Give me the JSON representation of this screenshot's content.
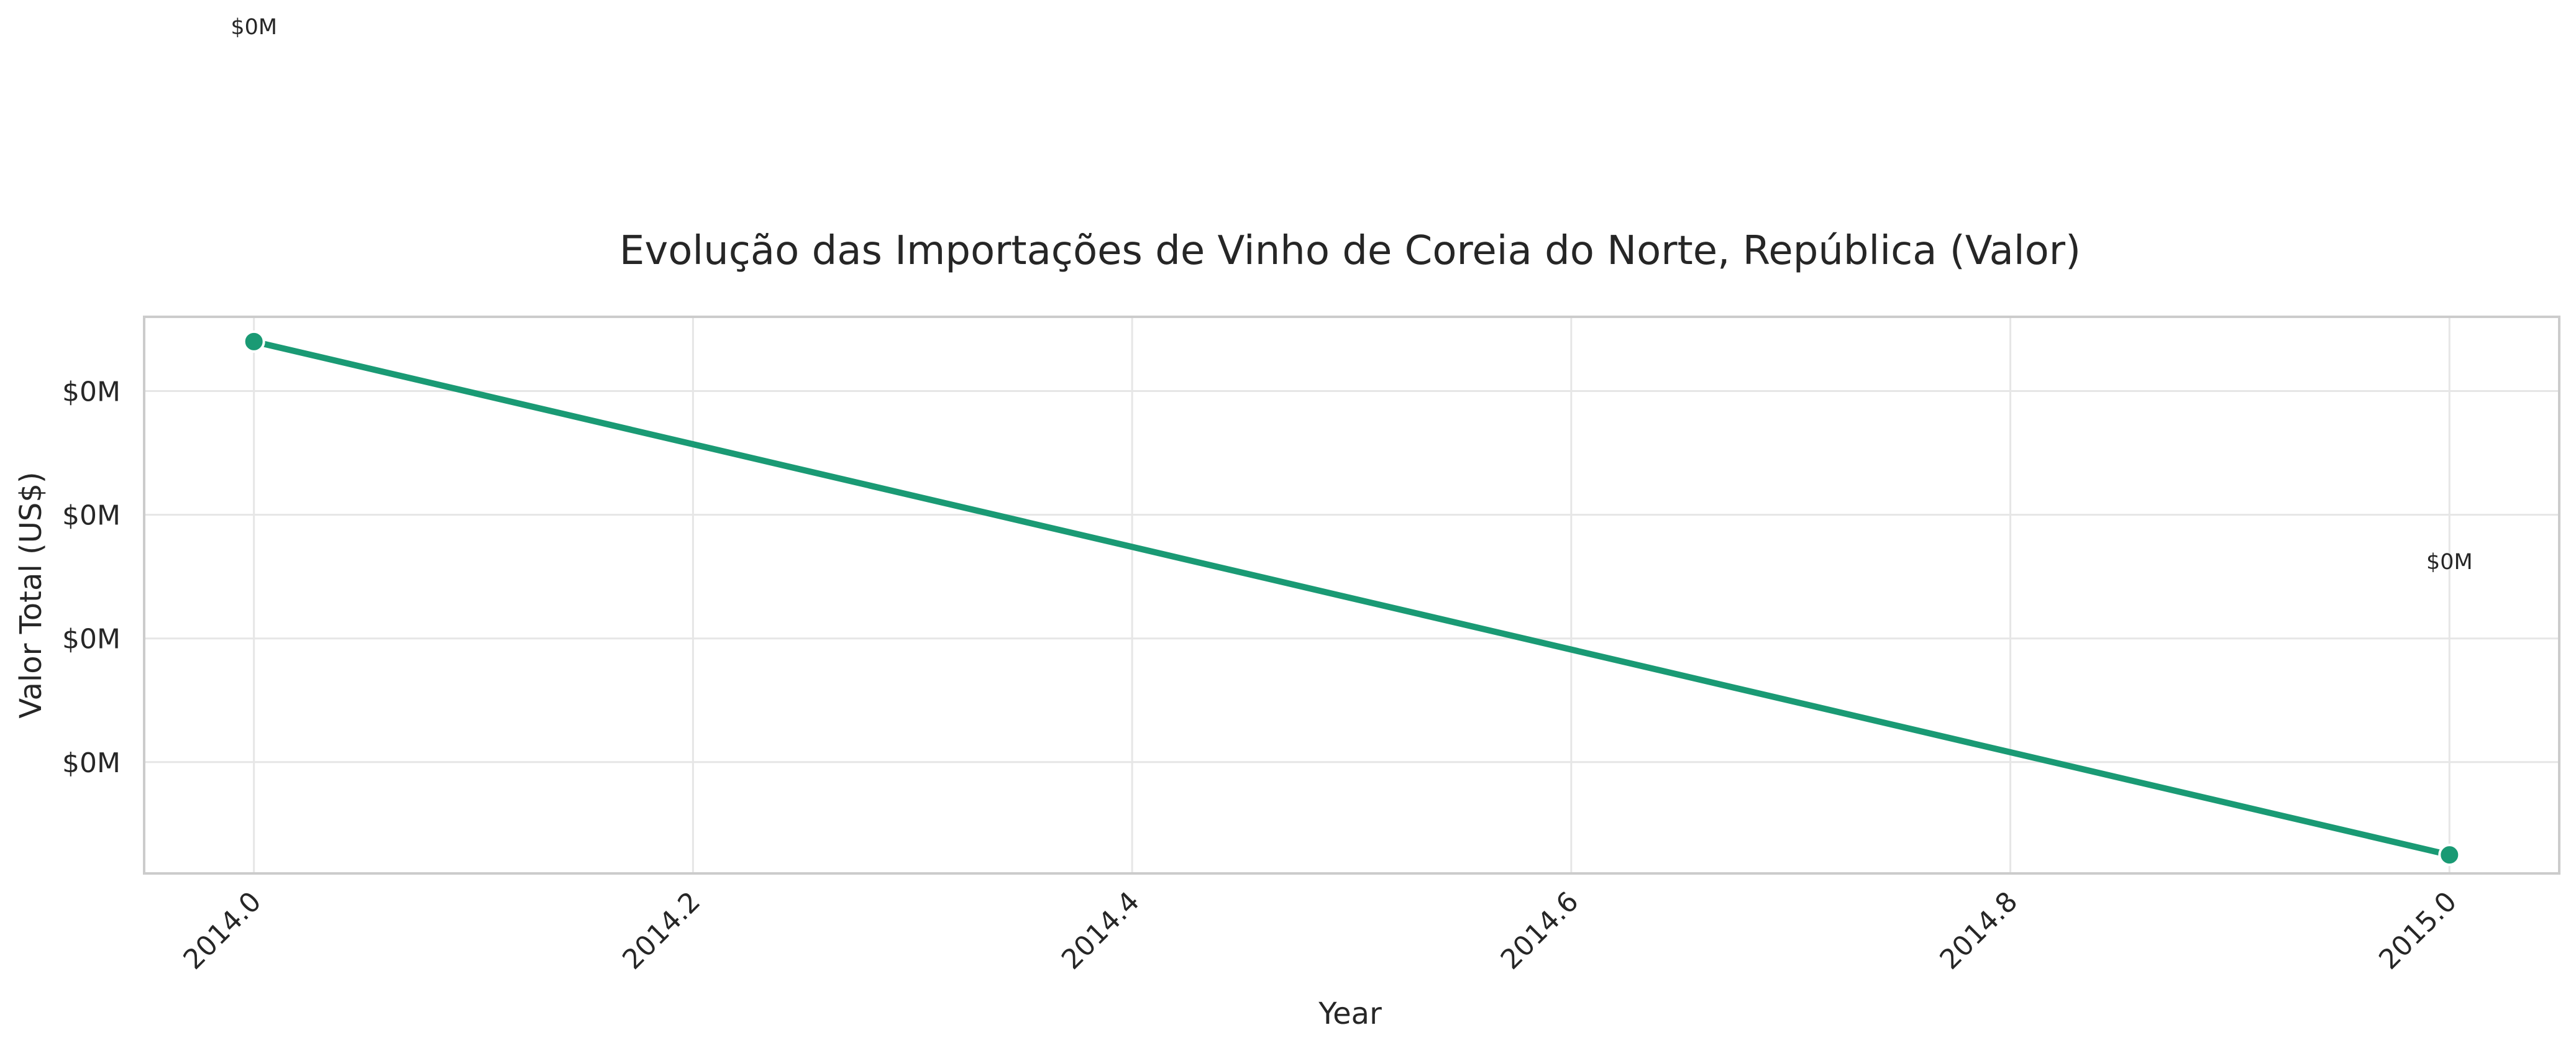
{
  "chart_data": {
    "type": "line",
    "title": "Evolução das Importações de Vinho de Coreia do Norte, República (Valor)",
    "xlabel": "Year",
    "ylabel": "Valor Total (US$)",
    "x": [
      2014.0,
      2015.0
    ],
    "series": [
      {
        "values": [
          4.2e-05,
          5e-07
        ],
        "color": "#1a9a74",
        "data_labels": [
          "$0M",
          "$0M"
        ]
      }
    ],
    "xlim": [
      2013.95,
      2015.05
    ],
    "ylim": [
      -1e-06,
      4.4e-05
    ],
    "x_ticks": [
      2014.0,
      2014.2,
      2014.4,
      2014.6,
      2014.8,
      2015.0
    ],
    "x_tick_labels": [
      "2014.0",
      "2014.2",
      "2014.4",
      "2014.6",
      "2014.8",
      "2015.0"
    ],
    "y_ticks": [
      8e-06,
      1.8e-05,
      2.8e-05,
      3.8e-05
    ],
    "y_tick_labels": [
      "$0M",
      "$0M",
      "$0M",
      "$0M"
    ],
    "grid": true,
    "legend": "none"
  }
}
